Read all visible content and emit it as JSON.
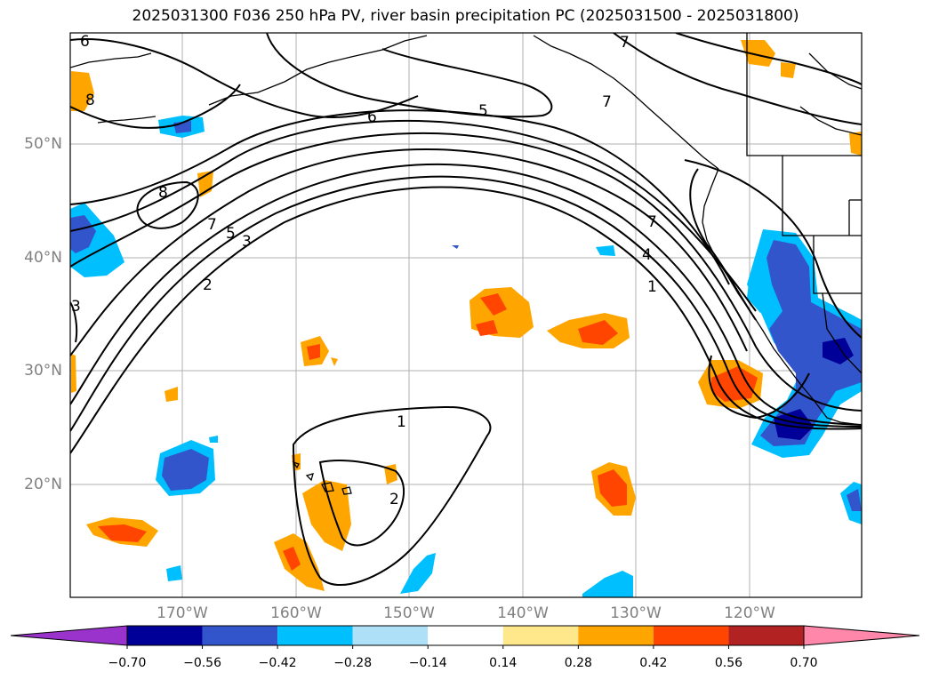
{
  "title": "2025031300 F036 250 hPa PV, river basin precipitation PC (2025031500 - 2025031800)",
  "lat_labels": [
    "50°N",
    "40°N",
    "30°N",
    "20°N"
  ],
  "lon_labels": [
    "170°W",
    "160°W",
    "150°W",
    "140°W",
    "130°W",
    "120°W"
  ],
  "colorbar": {
    "ticks": [
      "−0.70",
      "−0.56",
      "−0.42",
      "−0.28",
      "−0.14",
      "0.14",
      "0.28",
      "0.42",
      "0.56",
      "0.70"
    ],
    "colors": [
      "#9933cc",
      "#000099",
      "#3355cc",
      "#00bfff",
      "#aee0f8",
      "#ffffff",
      "#ffe88c",
      "#ffa500",
      "#ff4500",
      "#b22222",
      "#ff88aa"
    ]
  },
  "contour_labels": [
    "6",
    "8",
    "5",
    "6",
    "7",
    "8",
    "7",
    "5",
    "3",
    "2",
    "3",
    "7",
    "4",
    "1",
    "1",
    "2",
    "7"
  ],
  "colors": {
    "grid": "#b0b0b0",
    "contour": "#000000"
  }
}
